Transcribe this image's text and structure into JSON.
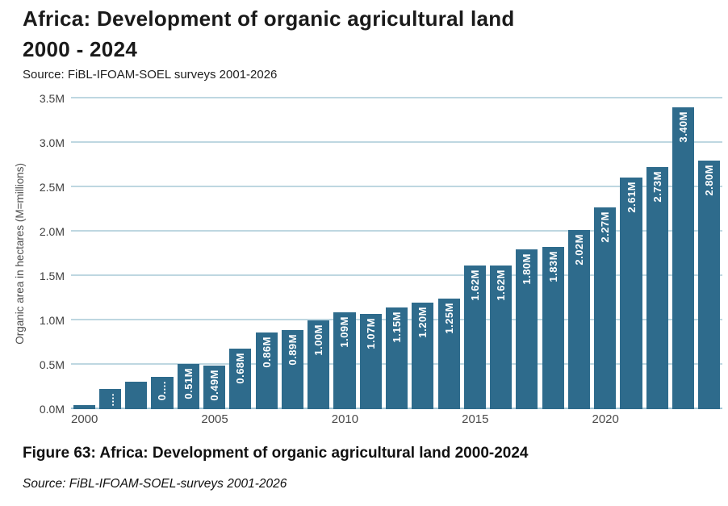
{
  "header": {
    "title_line1": "Africa: Development of organic agricultural land",
    "title_line2": "2000 - 2024",
    "source": "Source: FiBL-IFOAM-SOEL surveys 2001-2026"
  },
  "footer": {
    "caption": "Figure 63: Africa: Development of organic agricultural land 2000-2024",
    "source": "Source: FiBL-IFOAM-SOEL-surveys 2001-2026"
  },
  "chart_data": {
    "type": "bar",
    "title": "Africa: Development of organic agricultural land 2000 - 2024",
    "xlabel": "",
    "ylabel": "Organic area in hectares (M=millions)",
    "ylim": [
      0,
      3.5
    ],
    "grid": true,
    "legend": "none",
    "bar_color": "#2e6b8c",
    "grid_color": "#bed7e1",
    "bar_label_color": "#ffffff",
    "y_ticks": [
      {
        "value": 0.0,
        "label": "0.0M"
      },
      {
        "value": 0.5,
        "label": "0.5M"
      },
      {
        "value": 1.0,
        "label": "1.0M"
      },
      {
        "value": 1.5,
        "label": "1.5M"
      },
      {
        "value": 2.0,
        "label": "2.0M"
      },
      {
        "value": 2.5,
        "label": "2.5M"
      },
      {
        "value": 3.0,
        "label": "3.0M"
      },
      {
        "value": 3.5,
        "label": "3.5M"
      }
    ],
    "x_ticks_shown": [
      "2000",
      "2005",
      "2010",
      "2015",
      "2020"
    ],
    "categories": [
      2000,
      2001,
      2002,
      2003,
      2004,
      2005,
      2006,
      2007,
      2008,
      2009,
      2010,
      2011,
      2012,
      2013,
      2014,
      2015,
      2016,
      2017,
      2018,
      2019,
      2020,
      2021,
      2022,
      2023,
      2024
    ],
    "values": [
      0.05,
      0.23,
      0.31,
      0.36,
      0.51,
      0.49,
      0.68,
      0.86,
      0.89,
      1.0,
      1.09,
      1.07,
      1.15,
      1.2,
      1.25,
      1.62,
      1.62,
      1.8,
      1.83,
      2.02,
      2.27,
      2.61,
      2.73,
      3.4,
      2.8
    ],
    "bar_labels": [
      "",
      "....",
      "",
      "0....",
      "0.51M",
      "0.49M",
      "0.68M",
      "0.86M",
      "0.89M",
      "1.00M",
      "1.09M",
      "1.07M",
      "1.15M",
      "1.20M",
      "1.25M",
      "1.62M",
      "1.62M",
      "1.80M",
      "1.83M",
      "2.02M",
      "2.27M",
      "2.61M",
      "2.73M",
      "3.40M",
      "2.80M"
    ]
  }
}
